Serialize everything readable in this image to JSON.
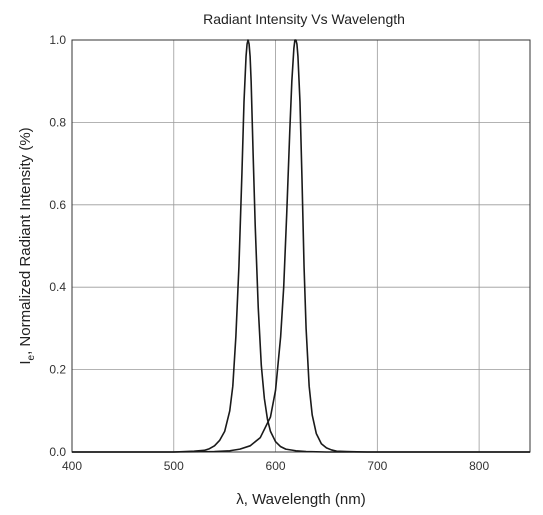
{
  "chart_data": {
    "type": "line",
    "title": "Radiant Intensity Vs Wavelength",
    "xlabel": "λ, Wavelength (nm)",
    "ylabel": {
      "prefix": "I",
      "subscript": "e",
      "suffix": ", Normalized Radiant Intensity (%)"
    },
    "xlim": [
      400,
      850
    ],
    "ylim": [
      0.0,
      1.0
    ],
    "xticks": [
      400,
      500,
      600,
      700,
      800
    ],
    "yticks": [
      0.0,
      0.2,
      0.4,
      0.6,
      0.8,
      1.0
    ],
    "xtick_labels": [
      "400",
      "500",
      "600",
      "700",
      "800"
    ],
    "ytick_labels": [
      "0.0",
      "0.2",
      "0.4",
      "0.6",
      "0.8",
      "1.0"
    ],
    "grid": true,
    "legend": "none",
    "series": [
      {
        "x": [
          400,
          450,
          500,
          520,
          530,
          535,
          540,
          545,
          550,
          555,
          558,
          561,
          564,
          567,
          569,
          571,
          572,
          573,
          574,
          575,
          576,
          578,
          580,
          583,
          586,
          589,
          592,
          595,
          600,
          605,
          610,
          620,
          630,
          650,
          700,
          850
        ],
        "y": [
          0.0,
          0.0,
          0.0,
          0.002,
          0.004,
          0.008,
          0.015,
          0.028,
          0.05,
          0.1,
          0.16,
          0.28,
          0.45,
          0.68,
          0.85,
          0.96,
          0.99,
          1.0,
          0.99,
          0.96,
          0.9,
          0.72,
          0.55,
          0.35,
          0.21,
          0.13,
          0.08,
          0.05,
          0.025,
          0.013,
          0.007,
          0.003,
          0.001,
          0.0,
          0.0,
          0.0
        ]
      },
      {
        "x": [
          400,
          500,
          540,
          555,
          565,
          575,
          585,
          595,
          600,
          605,
          608,
          611,
          614,
          616,
          618,
          619,
          620,
          621,
          622,
          624,
          626,
          628,
          630,
          633,
          636,
          640,
          645,
          650,
          655,
          660,
          670,
          690,
          850
        ],
        "y": [
          0.0,
          0.0,
          0.001,
          0.003,
          0.007,
          0.015,
          0.035,
          0.085,
          0.15,
          0.28,
          0.4,
          0.58,
          0.78,
          0.9,
          0.98,
          1.0,
          1.0,
          0.99,
          0.96,
          0.85,
          0.66,
          0.45,
          0.3,
          0.16,
          0.09,
          0.045,
          0.02,
          0.01,
          0.005,
          0.002,
          0.001,
          0.0,
          0.0
        ]
      }
    ]
  }
}
